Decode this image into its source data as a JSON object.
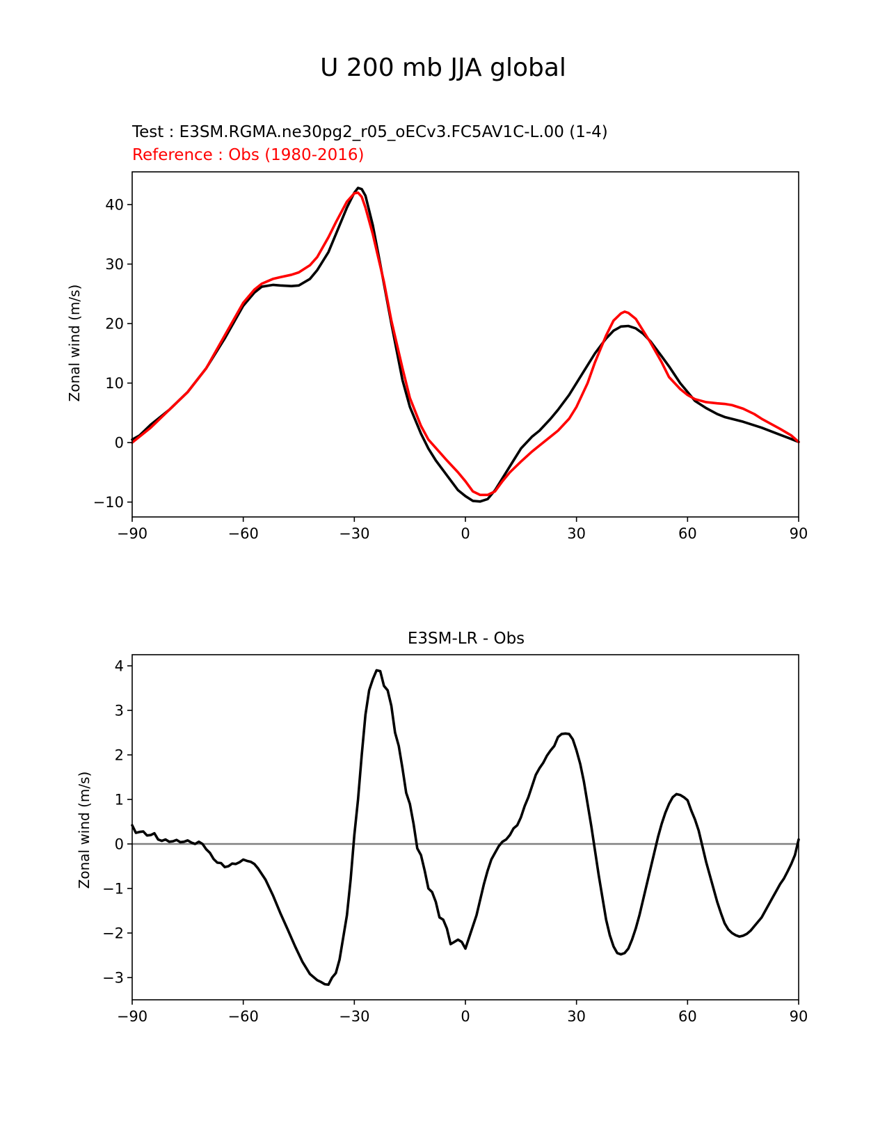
{
  "figure": {
    "suptitle": "U 200 mb JJA global",
    "test_label": "Test : E3SM.RGMA.ne30pg2_r05_oECv3.FC5AV1C-L.00 (1-4)",
    "reference_label": "Reference : Obs (1980-2016)"
  },
  "colors": {
    "test": "#000000",
    "reference": "#ff0000",
    "zero_line": "#808080"
  },
  "chart_data": [
    {
      "type": "line",
      "title": "",
      "xlabel": "",
      "ylabel": "Zonal wind (m/s)",
      "xlim": [
        -90,
        90
      ],
      "ylim": [
        -12.5,
        45.5
      ],
      "xticks": [
        -90,
        -60,
        -30,
        0,
        30,
        60,
        90
      ],
      "xtick_labels": [
        "−90",
        "−60",
        "−30",
        "0",
        "30",
        "60",
        "90"
      ],
      "yticks": [
        -10,
        0,
        10,
        20,
        30,
        40
      ],
      "ytick_labels": [
        "−10",
        "0",
        "10",
        "20",
        "30",
        "40"
      ],
      "grid": false,
      "series": [
        {
          "name": "Test",
          "color": "#000000",
          "x": [
            -90,
            -88,
            -85,
            -80,
            -75,
            -70,
            -65,
            -60,
            -57,
            -55,
            -52,
            -50,
            -47,
            -45,
            -42,
            -40,
            -37,
            -35,
            -32,
            -30,
            -29,
            -28,
            -27,
            -26,
            -25,
            -23,
            -20,
            -17,
            -15,
            -12,
            -10,
            -8,
            -5,
            -2,
            0,
            2,
            4,
            6,
            8,
            10,
            13,
            15,
            18,
            20,
            23,
            25,
            28,
            30,
            33,
            35,
            38,
            40,
            42,
            44,
            46,
            48,
            50,
            53,
            55,
            58,
            60,
            62,
            65,
            68,
            70,
            75,
            80,
            85,
            88,
            90
          ],
          "y": [
            0.5,
            1.2,
            3.0,
            5.5,
            8.5,
            12.5,
            17.5,
            23.0,
            25.2,
            26.2,
            26.5,
            26.4,
            26.3,
            26.4,
            27.5,
            29.0,
            32.0,
            35.0,
            39.5,
            42.0,
            42.8,
            42.6,
            41.5,
            39.0,
            36.5,
            30.0,
            20.0,
            10.5,
            6.0,
            1.5,
            -1.0,
            -3.0,
            -5.5,
            -8.0,
            -9.0,
            -9.8,
            -9.9,
            -9.5,
            -8.0,
            -6.0,
            -3.0,
            -1.0,
            1.0,
            2.0,
            4.0,
            5.5,
            8.0,
            10.0,
            13.0,
            15.0,
            17.5,
            18.8,
            19.5,
            19.6,
            19.2,
            18.3,
            17.0,
            14.5,
            12.8,
            10.0,
            8.5,
            7.0,
            5.8,
            4.8,
            4.3,
            3.5,
            2.5,
            1.3,
            0.6,
            0.1
          ]
        },
        {
          "name": "Reference",
          "color": "#ff0000",
          "x": [
            -90,
            -85,
            -80,
            -75,
            -70,
            -65,
            -60,
            -57,
            -55,
            -52,
            -50,
            -47,
            -45,
            -42,
            -40,
            -37,
            -35,
            -32,
            -30,
            -29,
            -28,
            -27,
            -25,
            -22,
            -20,
            -17,
            -15,
            -12,
            -10,
            -5,
            -2,
            0,
            2,
            4,
            6,
            8,
            10,
            12,
            15,
            18,
            20,
            23,
            25,
            28,
            30,
            33,
            35,
            38,
            40,
            42,
            43,
            44,
            46,
            48,
            50,
            53,
            55,
            58,
            60,
            62,
            65,
            68,
            70,
            72,
            75,
            78,
            80,
            85,
            88,
            90
          ],
          "y": [
            0.0,
            2.5,
            5.5,
            8.5,
            12.5,
            18.0,
            23.5,
            25.7,
            26.7,
            27.5,
            27.8,
            28.2,
            28.6,
            29.8,
            31.2,
            34.5,
            37.0,
            40.5,
            41.9,
            42.0,
            41.3,
            39.5,
            35.0,
            27.0,
            20.5,
            12.5,
            7.5,
            2.8,
            0.5,
            -3.0,
            -5.0,
            -6.5,
            -8.2,
            -8.8,
            -8.8,
            -8.2,
            -6.5,
            -5.0,
            -3.2,
            -1.5,
            -0.5,
            1.0,
            2.0,
            4.0,
            6.0,
            10.0,
            13.5,
            18.0,
            20.5,
            21.7,
            22.0,
            21.8,
            20.8,
            18.8,
            16.8,
            13.5,
            11.0,
            9.0,
            8.0,
            7.3,
            6.8,
            6.6,
            6.5,
            6.3,
            5.7,
            4.8,
            4.0,
            2.3,
            1.2,
            0.1
          ]
        }
      ]
    },
    {
      "type": "line",
      "title": "E3SM-LR - Obs",
      "xlabel": "",
      "ylabel": "Zonal wind (m/s)",
      "xlim": [
        -90,
        90
      ],
      "ylim": [
        -3.5,
        4.25
      ],
      "xticks": [
        -90,
        -60,
        -30,
        0,
        30,
        60,
        90
      ],
      "xtick_labels": [
        "−90",
        "−60",
        "−30",
        "0",
        "30",
        "60",
        "90"
      ],
      "yticks": [
        -3,
        -2,
        -1,
        0,
        1,
        2,
        3,
        4
      ],
      "ytick_labels": [
        "−3",
        "−2",
        "−1",
        "0",
        "1",
        "2",
        "3",
        "4"
      ],
      "grid": false,
      "reference_line_y": 0,
      "series": [
        {
          "name": "",
          "color": "#000000",
          "x": [
            -90,
            -89,
            -88,
            -87,
            -86,
            -85,
            -84,
            -83,
            -82,
            -81,
            -80,
            -79,
            -78,
            -77,
            -76,
            -75,
            -74,
            -73,
            -72,
            -71,
            -70,
            -69,
            -68,
            -67,
            -66,
            -65,
            -64,
            -63,
            -62,
            -61,
            -60,
            -59,
            -58,
            -57,
            -56,
            -54,
            -52,
            -50,
            -48,
            -46,
            -44,
            -42,
            -40,
            -39,
            -38,
            -37,
            -36,
            -35,
            -34,
            -33,
            -32,
            -31,
            -30,
            -29,
            -28,
            -27,
            -26,
            -25,
            -24,
            -23,
            -22,
            -21,
            -20,
            -19,
            -18,
            -17,
            -16,
            -15,
            -14,
            -13,
            -12,
            -11,
            -10,
            -9,
            -8,
            -7,
            -6,
            -5,
            -4,
            -3,
            -2,
            -1,
            0,
            1,
            2,
            3,
            4,
            5,
            6,
            7,
            8,
            9,
            10,
            11,
            12,
            13,
            14,
            15,
            16,
            17,
            18,
            19,
            20,
            21,
            22,
            23,
            24,
            25,
            26,
            27,
            28,
            29,
            30,
            31,
            32,
            33,
            34,
            35,
            36,
            37,
            38,
            39,
            40,
            41,
            42,
            43,
            44,
            45,
            46,
            47,
            48,
            49,
            50,
            51,
            52,
            53,
            54,
            55,
            56,
            57,
            58,
            59,
            60,
            61,
            62,
            63,
            64,
            65,
            66,
            67,
            68,
            69,
            70,
            71,
            72,
            73,
            74,
            75,
            76,
            77,
            78,
            79,
            80,
            81,
            82,
            83,
            84,
            85,
            86,
            87,
            88,
            89,
            90
          ],
          "y": [
            0.42,
            0.25,
            0.27,
            0.28,
            0.19,
            0.2,
            0.24,
            0.1,
            0.07,
            0.1,
            0.05,
            0.06,
            0.09,
            0.04,
            0.05,
            0.08,
            0.03,
            0.0,
            0.05,
            0.0,
            -0.12,
            -0.2,
            -0.34,
            -0.42,
            -0.43,
            -0.52,
            -0.5,
            -0.44,
            -0.45,
            -0.41,
            -0.35,
            -0.38,
            -0.4,
            -0.45,
            -0.55,
            -0.8,
            -1.15,
            -1.55,
            -1.92,
            -2.3,
            -2.65,
            -2.92,
            -3.06,
            -3.1,
            -3.15,
            -3.16,
            -3.0,
            -2.9,
            -2.6,
            -2.1,
            -1.6,
            -0.8,
            0.2,
            1.0,
            2.0,
            2.9,
            3.45,
            3.7,
            3.9,
            3.88,
            3.55,
            3.45,
            3.1,
            2.5,
            2.2,
            1.7,
            1.15,
            0.9,
            0.45,
            -0.1,
            -0.25,
            -0.6,
            -1.0,
            -1.08,
            -1.3,
            -1.65,
            -1.7,
            -1.9,
            -2.25,
            -2.2,
            -2.15,
            -2.2,
            -2.35,
            -2.1,
            -1.85,
            -1.6,
            -1.25,
            -0.9,
            -0.6,
            -0.35,
            -0.2,
            -0.05,
            0.05,
            0.1,
            0.2,
            0.35,
            0.42,
            0.6,
            0.85,
            1.05,
            1.3,
            1.55,
            1.7,
            1.82,
            1.98,
            2.1,
            2.2,
            2.4,
            2.47,
            2.48,
            2.47,
            2.35,
            2.1,
            1.8,
            1.4,
            0.9,
            0.4,
            -0.15,
            -0.7,
            -1.2,
            -1.7,
            -2.05,
            -2.3,
            -2.45,
            -2.48,
            -2.45,
            -2.35,
            -2.15,
            -1.9,
            -1.6,
            -1.25,
            -0.9,
            -0.55,
            -0.2,
            0.15,
            0.45,
            0.7,
            0.9,
            1.05,
            1.12,
            1.1,
            1.05,
            0.98,
            0.75,
            0.55,
            0.3,
            -0.05,
            -0.4,
            -0.7,
            -1.0,
            -1.3,
            -1.55,
            -1.78,
            -1.92,
            -2.0,
            -2.05,
            -2.08,
            -2.06,
            -2.02,
            -1.95,
            -1.85,
            -1.75,
            -1.65,
            -1.5,
            -1.35,
            -1.2,
            -1.05,
            -0.9,
            -0.78,
            -0.62,
            -0.45,
            -0.25,
            0.1
          ]
        }
      ]
    }
  ]
}
